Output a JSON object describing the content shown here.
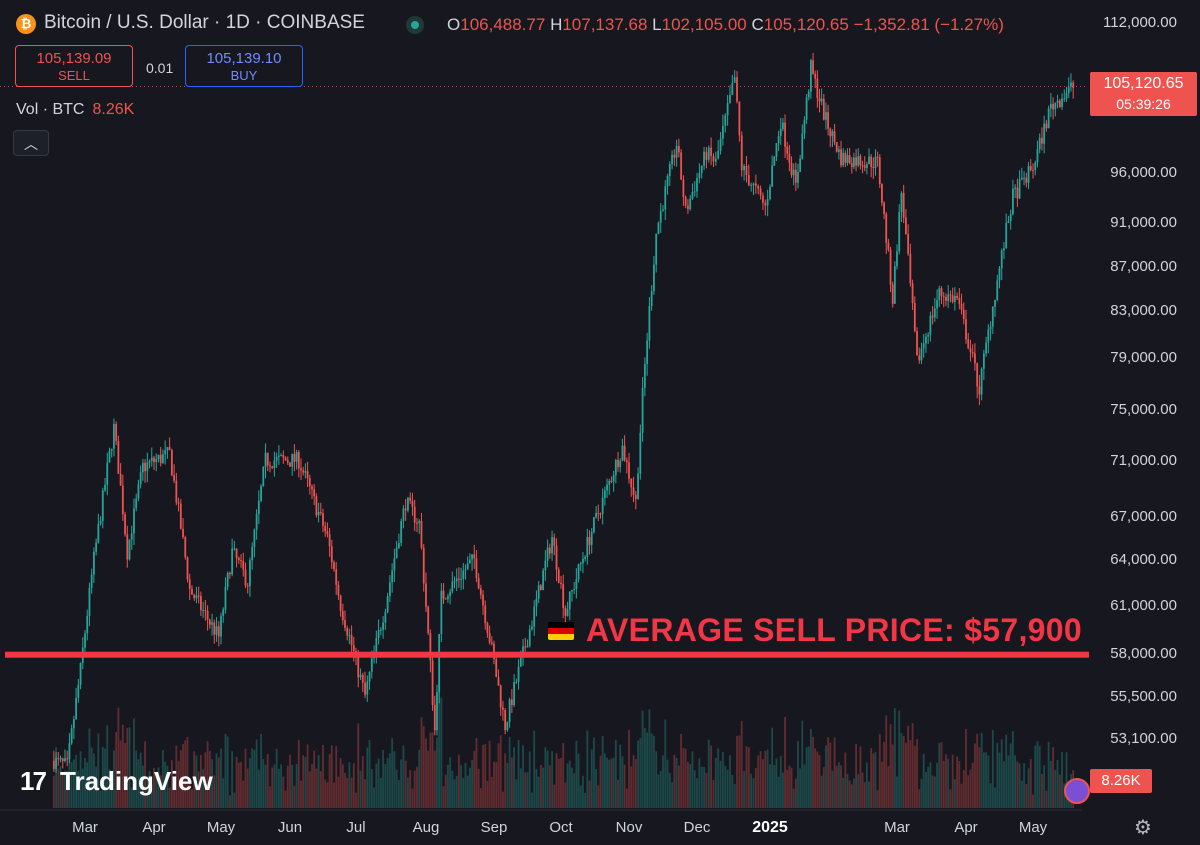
{
  "header": {
    "coin_icon": "bitcoin-icon",
    "title": "Bitcoin / U.S. Dollar · 1D · COINBASE",
    "open_label": "O",
    "open": "106,488.77",
    "high_label": "H",
    "high": "107,137.68",
    "low_label": "L",
    "low": "102,105.00",
    "close_label": "C",
    "close": "105,120.65",
    "change": "−1,352.81 (−1.27%)"
  },
  "trade": {
    "sell_price": "105,139.09",
    "sell_label": "SELL",
    "spread": "0.01",
    "buy_price": "105,139.10",
    "buy_label": "BUY"
  },
  "volume": {
    "label": "Vol · BTC",
    "value": "8.26K"
  },
  "price_tag": {
    "price": "105,120.65",
    "countdown": "05:39:26"
  },
  "volume_tag": "8.26K",
  "annotation": {
    "flag_icon": "germany-flag-icon",
    "text": "AVERAGE SELL PRICE: $57,900"
  },
  "branding": {
    "logo_mark": "17",
    "logo_text": "TradingView"
  },
  "colors": {
    "up": "#26a69a",
    "down": "#ef5350",
    "sell_line": "#f23645",
    "background": "#17181f"
  },
  "chart_data": {
    "type": "candlestick",
    "y_ticks": [
      {
        "value": 112000,
        "label": "112,000.00"
      },
      {
        "value": 96000,
        "label": "96,000.00"
      },
      {
        "value": 91000,
        "label": "91,000.00"
      },
      {
        "value": 87000,
        "label": "87,000.00"
      },
      {
        "value": 83000,
        "label": "83,000.00"
      },
      {
        "value": 79000,
        "label": "79,000.00"
      },
      {
        "value": 75000,
        "label": "75,000.00"
      },
      {
        "value": 71000,
        "label": "71,000.00"
      },
      {
        "value": 67000,
        "label": "67,000.00"
      },
      {
        "value": 64000,
        "label": "64,000.00"
      },
      {
        "value": 61000,
        "label": "61,000.00"
      },
      {
        "value": 58000,
        "label": "58,000.00"
      },
      {
        "value": 55500,
        "label": "55,500.00"
      },
      {
        "value": 53100,
        "label": "53,100.00"
      }
    ],
    "x_ticks": [
      {
        "label": "Mar",
        "date": "2024-03-01"
      },
      {
        "label": "Apr",
        "date": "2024-04-01"
      },
      {
        "label": "May",
        "date": "2024-05-01"
      },
      {
        "label": "Jun",
        "date": "2024-06-01"
      },
      {
        "label": "Jul",
        "date": "2024-07-01"
      },
      {
        "label": "Aug",
        "date": "2024-08-01"
      },
      {
        "label": "Sep",
        "date": "2024-09-01"
      },
      {
        "label": "Oct",
        "date": "2024-10-01"
      },
      {
        "label": "Nov",
        "date": "2024-11-01"
      },
      {
        "label": "Dec",
        "date": "2024-12-01"
      },
      {
        "label": "2025",
        "date": "2025-01-01",
        "bold": true
      },
      {
        "label": "Mar",
        "date": "2025-03-01"
      },
      {
        "label": "Apr",
        "date": "2025-04-01"
      },
      {
        "label": "May",
        "date": "2025-05-01"
      }
    ],
    "price_path": [
      {
        "date": "2024-02-16",
        "price": 51800
      },
      {
        "date": "2024-02-22",
        "price": 51500
      },
      {
        "date": "2024-02-28",
        "price": 57000
      },
      {
        "date": "2024-03-05",
        "price": 64000
      },
      {
        "date": "2024-03-14",
        "price": 73500
      },
      {
        "date": "2024-03-20",
        "price": 64500
      },
      {
        "date": "2024-03-27",
        "price": 70500
      },
      {
        "date": "2024-04-08",
        "price": 71500
      },
      {
        "date": "2024-04-17",
        "price": 62000
      },
      {
        "date": "2024-04-30",
        "price": 59000
      },
      {
        "date": "2024-05-06",
        "price": 64500
      },
      {
        "date": "2024-05-13",
        "price": 62500
      },
      {
        "date": "2024-05-21",
        "price": 71000
      },
      {
        "date": "2024-06-05",
        "price": 71000
      },
      {
        "date": "2024-06-18",
        "price": 65500
      },
      {
        "date": "2024-06-24",
        "price": 61000
      },
      {
        "date": "2024-07-05",
        "price": 55500
      },
      {
        "date": "2024-07-14",
        "price": 61000
      },
      {
        "date": "2024-07-23",
        "price": 68000
      },
      {
        "date": "2024-07-29",
        "price": 66500
      },
      {
        "date": "2024-08-05",
        "price": 53500
      },
      {
        "date": "2024-08-08",
        "price": 61500
      },
      {
        "date": "2024-08-23",
        "price": 64000
      },
      {
        "date": "2024-09-06",
        "price": 53800
      },
      {
        "date": "2024-09-18",
        "price": 60000
      },
      {
        "date": "2024-09-27",
        "price": 65500
      },
      {
        "date": "2024-10-03",
        "price": 60500
      },
      {
        "date": "2024-10-14",
        "price": 65500
      },
      {
        "date": "2024-10-29",
        "price": 72000
      },
      {
        "date": "2024-11-04",
        "price": 68000
      },
      {
        "date": "2024-11-07",
        "price": 76000
      },
      {
        "date": "2024-11-13",
        "price": 90000
      },
      {
        "date": "2024-11-22",
        "price": 99000
      },
      {
        "date": "2024-11-26",
        "price": 92000
      },
      {
        "date": "2024-12-05",
        "price": 98000
      },
      {
        "date": "2024-12-09",
        "price": 97000
      },
      {
        "date": "2024-12-17",
        "price": 106000
      },
      {
        "date": "2024-12-20",
        "price": 96500
      },
      {
        "date": "2024-12-30",
        "price": 92500
      },
      {
        "date": "2025-01-06",
        "price": 101500
      },
      {
        "date": "2025-01-13",
        "price": 94500
      },
      {
        "date": "2025-01-20",
        "price": 107000
      },
      {
        "date": "2025-01-27",
        "price": 101500
      },
      {
        "date": "2025-02-03",
        "price": 97500
      },
      {
        "date": "2025-02-20",
        "price": 97000
      },
      {
        "date": "2025-02-27",
        "price": 84000
      },
      {
        "date": "2025-03-03",
        "price": 94000
      },
      {
        "date": "2025-03-10",
        "price": 78500
      },
      {
        "date": "2025-03-20",
        "price": 84500
      },
      {
        "date": "2025-03-28",
        "price": 84000
      },
      {
        "date": "2025-04-07",
        "price": 76500
      },
      {
        "date": "2025-04-14",
        "price": 84500
      },
      {
        "date": "2025-04-22",
        "price": 93500
      },
      {
        "date": "2025-05-01",
        "price": 96500
      },
      {
        "date": "2025-05-09",
        "price": 103000
      },
      {
        "date": "2025-05-19",
        "price": 105120
      }
    ],
    "reference_line": {
      "value": 57900
    },
    "last_price": 105120.65,
    "grid": false
  }
}
